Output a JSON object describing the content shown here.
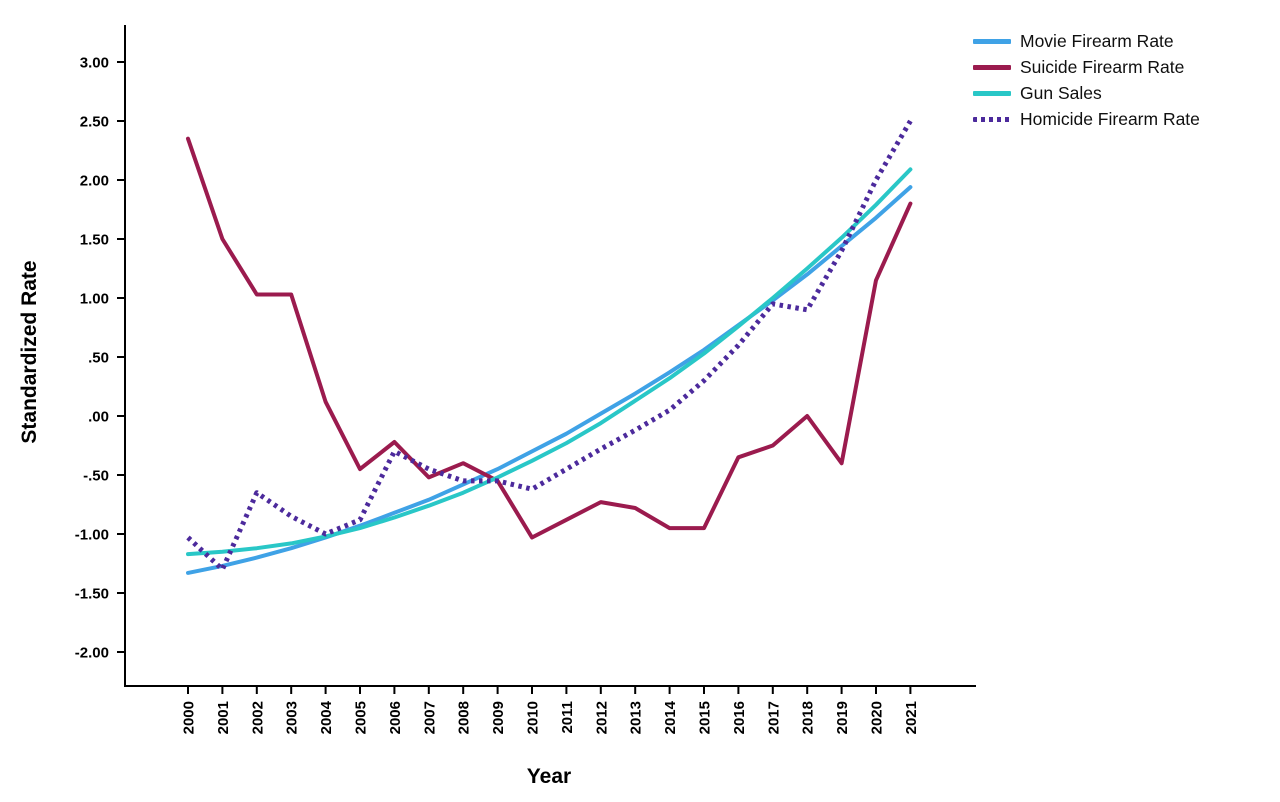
{
  "chart_data": {
    "type": "line",
    "title": "",
    "background": "#ffffff",
    "axis_color": "#000000",
    "grid": false,
    "legend_position": "top-right",
    "x_axis": {
      "title": "Year",
      "labels": [
        "2000",
        "2001",
        "2002",
        "2003",
        "2004",
        "2005",
        "2006",
        "2007",
        "2008",
        "2009",
        "2010",
        "2011",
        "2012",
        "2013",
        "2014",
        "2015",
        "2016",
        "2017",
        "2018",
        "2019",
        "2020",
        "2021"
      ]
    },
    "y_axis": {
      "title": "Standardized Rate",
      "ylim": [
        -2.0,
        3.0
      ],
      "ticks": [
        {
          "label": "3.00",
          "value": 3.0
        },
        {
          "label": "2.50",
          "value": 2.5
        },
        {
          "label": "2.00",
          "value": 2.0
        },
        {
          "label": "1.50",
          "value": 1.5
        },
        {
          "label": "1.00",
          "value": 1.0
        },
        {
          "label": ".50",
          "value": 0.5
        },
        {
          "label": ".00",
          "value": 0.0
        },
        {
          "label": "-.50",
          "value": -0.5
        },
        {
          "label": "-1.00",
          "value": -1.0
        },
        {
          "label": "-1.50",
          "value": -1.5
        },
        {
          "label": "-2.00",
          "value": -2.0
        }
      ]
    },
    "series": [
      {
        "name": "Movie Firearm Rate",
        "color": "#3FA2E6",
        "style": "solid",
        "values": [
          -1.33,
          -1.27,
          -1.2,
          -1.12,
          -1.03,
          -0.93,
          -0.82,
          -0.71,
          -0.58,
          -0.45,
          -0.3,
          -0.15,
          0.02,
          0.19,
          0.37,
          0.56,
          0.77,
          0.98,
          1.2,
          1.44,
          1.68,
          1.94
        ]
      },
      {
        "name": "Suicide Firearm Rate",
        "color": "#9B1B4E",
        "style": "solid",
        "values": [
          2.35,
          1.5,
          1.03,
          1.03,
          0.12,
          -0.45,
          -0.22,
          -0.52,
          -0.4,
          -0.55,
          -1.03,
          -0.88,
          -0.73,
          -0.78,
          -0.95,
          -0.95,
          -0.35,
          -0.25,
          0.0,
          -0.4,
          1.15,
          1.8
        ]
      },
      {
        "name": "Gun Sales",
        "color": "#29C7C7",
        "style": "solid",
        "values": [
          -1.17,
          -1.15,
          -1.12,
          -1.08,
          -1.02,
          -0.95,
          -0.86,
          -0.76,
          -0.65,
          -0.52,
          -0.38,
          -0.23,
          -0.06,
          0.13,
          0.32,
          0.53,
          0.76,
          1.0,
          1.25,
          1.51,
          1.79,
          2.09
        ]
      },
      {
        "name": "Homicide Firearm Rate",
        "color": "#4C2A9C",
        "style": "dotted",
        "values": [
          -1.03,
          -1.3,
          -0.65,
          -0.85,
          -1.0,
          -0.88,
          -0.3,
          -0.45,
          -0.55,
          -0.55,
          -0.62,
          -0.45,
          -0.28,
          -0.12,
          0.05,
          0.3,
          0.6,
          0.95,
          0.9,
          1.4,
          2.0,
          2.5
        ]
      }
    ]
  }
}
